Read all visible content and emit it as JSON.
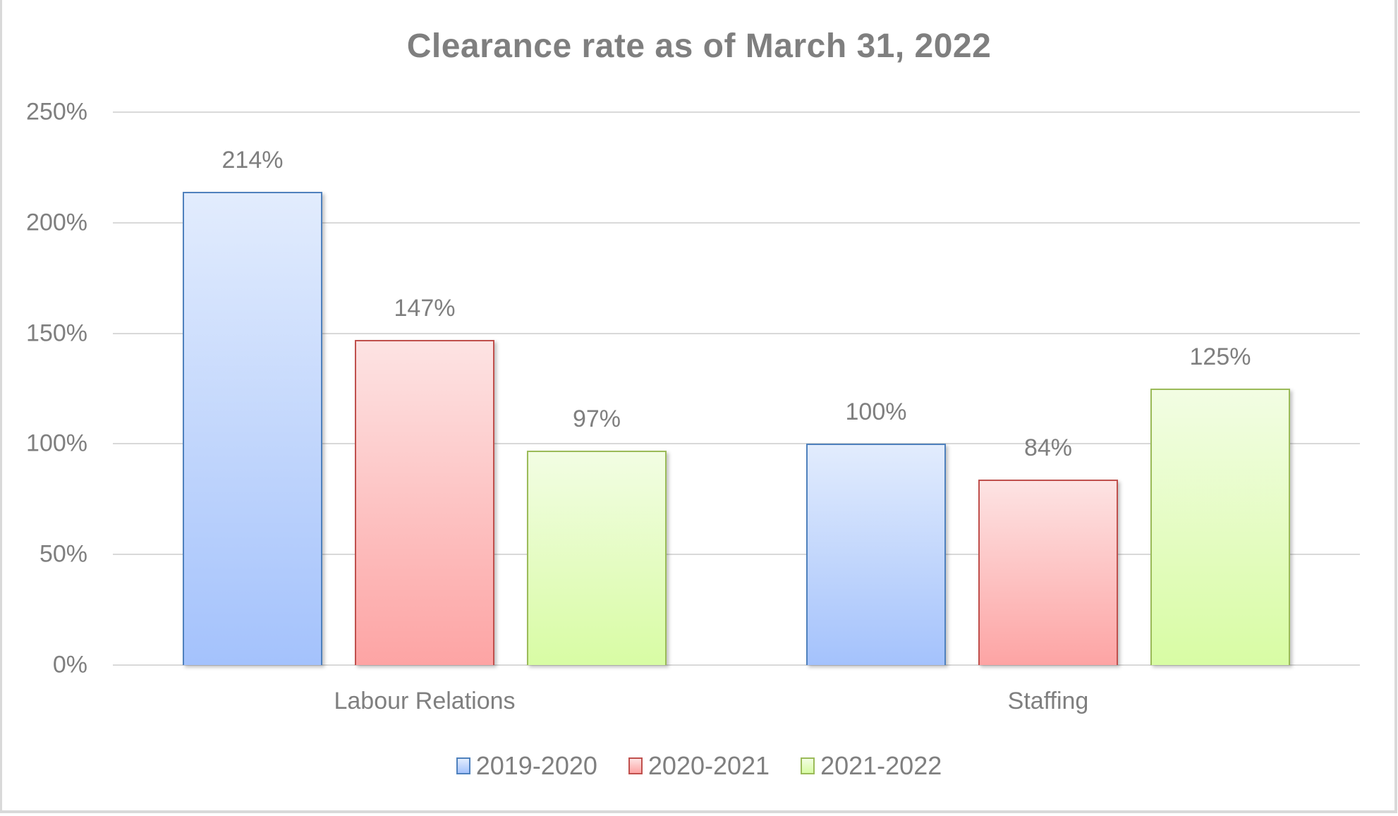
{
  "chart_data": {
    "type": "bar",
    "title": "Clearance rate as of March 31, 2022",
    "xlabel": "",
    "ylabel": "",
    "categories": [
      "Labour Relations",
      "Staffing"
    ],
    "series": [
      {
        "name": "2019-2020",
        "values": [
          214,
          100
        ],
        "labels": [
          "214%",
          "100%"
        ],
        "color": "#4f81bd",
        "fill_top": "#e2ecfd",
        "fill_bottom": "#a4c2fc"
      },
      {
        "name": "2020-2021",
        "values": [
          147,
          84
        ],
        "labels": [
          "147%",
          "84%"
        ],
        "color": "#c0504d",
        "fill_top": "#fde3e3",
        "fill_bottom": "#fda4a4"
      },
      {
        "name": "2021-2022",
        "values": [
          97,
          125
        ],
        "labels": [
          "97%",
          "125%"
        ],
        "color": "#9bbb59",
        "fill_top": "#f2fde3",
        "fill_bottom": "#d8fca4"
      }
    ],
    "ylim": [
      0,
      250
    ],
    "yticks": [
      "0%",
      "50%",
      "100%",
      "150%",
      "200%",
      "250%"
    ],
    "ytick_values": [
      0,
      50,
      100,
      150,
      200,
      250
    ],
    "grid": true,
    "legend_position": "bottom",
    "data_labels": true
  }
}
